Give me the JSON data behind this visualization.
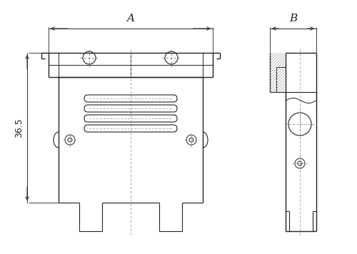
{
  "bg_color": "#ffffff",
  "line_color": "#222222",
  "dim_color": "#222222",
  "fig_width": 5.0,
  "fig_height": 3.56,
  "dpi": 100,
  "label_A": "A",
  "label_B": "B",
  "label_36_5": "36.5"
}
